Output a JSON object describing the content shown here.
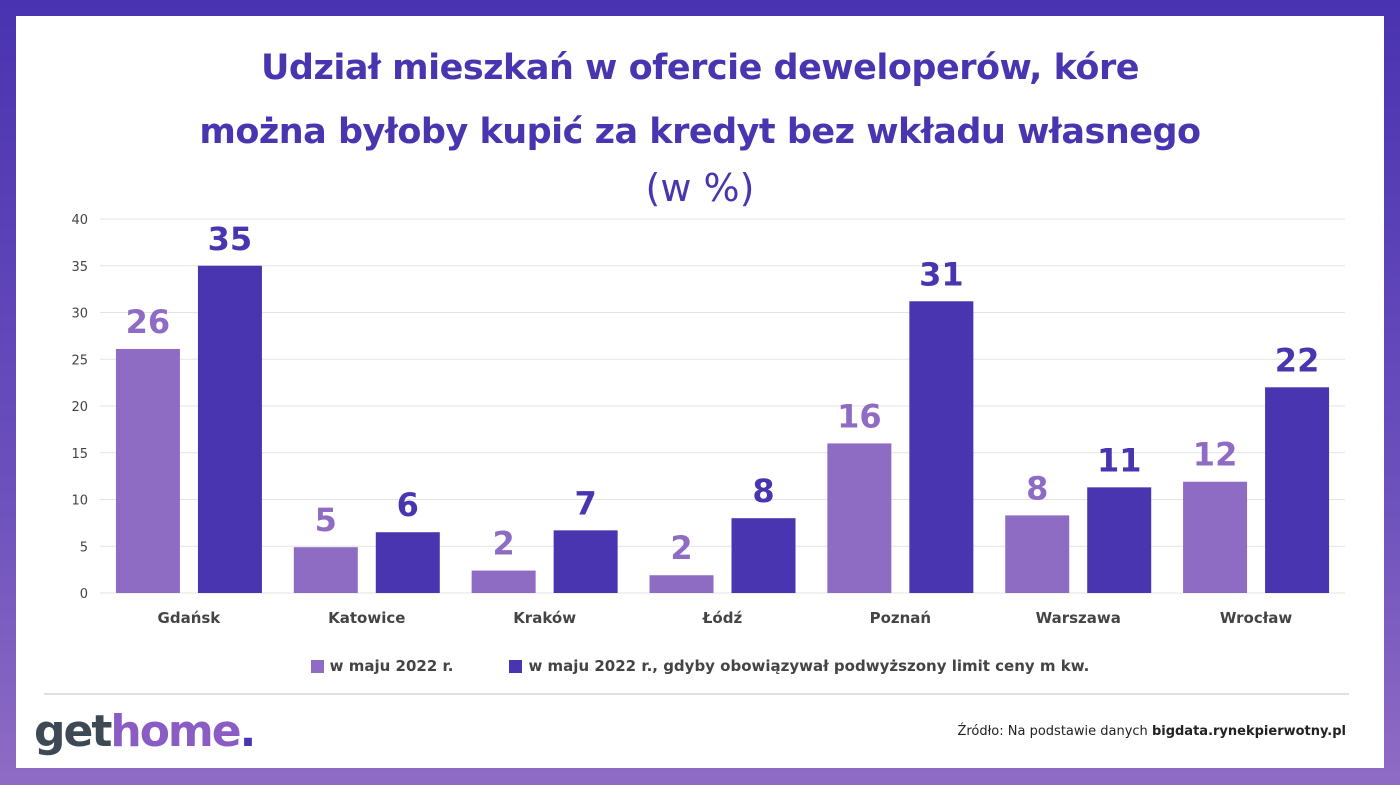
{
  "title_line1": "Udział mieszkań w ofercie deweloperów, kóre",
  "title_line2": "można byłoby kupić za kredyt bez wkładu własnego",
  "subtitle": "(w %)",
  "chart_data": {
    "type": "bar",
    "categories": [
      "Gdańsk",
      "Katowice",
      "Kraków",
      "Łódź",
      "Poznań",
      "Warszawa",
      "Wrocław"
    ],
    "series": [
      {
        "name": "w maju 2022 r.",
        "color": "#8f6cc4",
        "values": [
          26.1,
          4.9,
          2.4,
          1.9,
          16.0,
          8.3,
          11.9
        ],
        "labels": [
          "26",
          "5",
          "2",
          "2",
          "16",
          "8",
          "12"
        ]
      },
      {
        "name": "w maju 2022 r., gdyby obowiązywał podwyższony limit ceny m kw.",
        "color": "#4a35b0",
        "values": [
          35.0,
          6.5,
          6.7,
          8.0,
          31.2,
          11.3,
          22.0
        ],
        "labels": [
          "35",
          "6",
          "7",
          "8",
          "31",
          "11",
          "22"
        ]
      }
    ],
    "ylim": [
      0,
      40
    ],
    "yticks": [
      "0",
      "5",
      "10",
      "15",
      "20",
      "25",
      "30",
      "35",
      "40"
    ],
    "grid": true,
    "legend_position": "bottom"
  },
  "logo": {
    "part1": "get",
    "part2": "home",
    "part3": "."
  },
  "source": {
    "prefix": "Źródło: Na podstawie danych ",
    "bold": "bigdata.rynekpierwotny.pl"
  }
}
